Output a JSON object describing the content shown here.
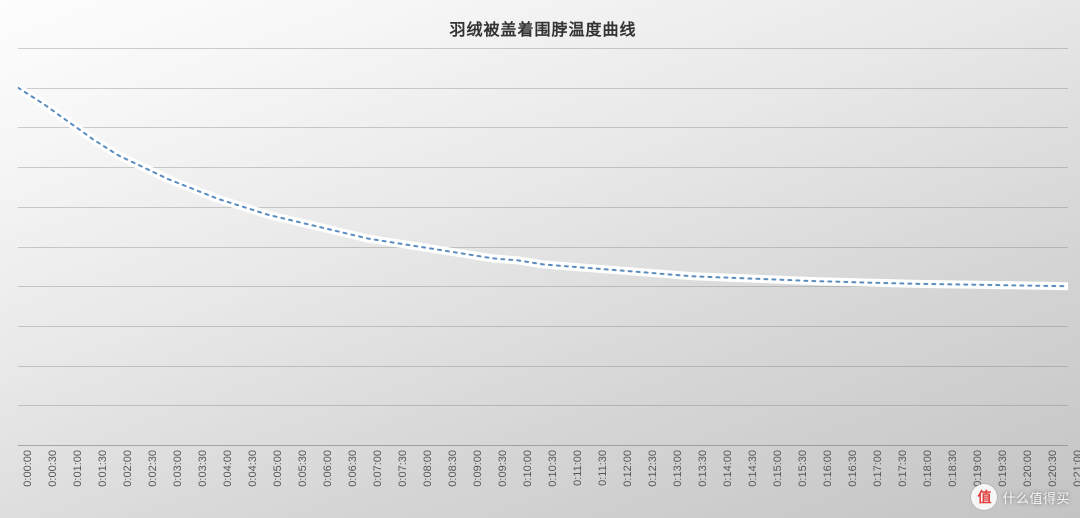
{
  "chart": {
    "type": "line",
    "title": "羽绒被盖着围脖温度曲线",
    "title_fontsize": 16,
    "title_color": "#333333",
    "background_gradient": [
      "#fdfdfd",
      "#f7f7f7",
      "#e9e9e9",
      "#d5d5d5",
      "#c4c4c4"
    ],
    "grid_color": "rgba(120,120,120,0.35)",
    "series": {
      "line_color": "#5b8cc0",
      "line_width": 2,
      "halo_color": "#ffffff",
      "halo_width": 8,
      "marker_color": "#5b8cc0",
      "marker_outline": "#ffffff",
      "marker_size": 3,
      "x_labels": [
        "0:00:00",
        "0:00:30",
        "0:01:00",
        "0:01:30",
        "0:02:00",
        "0:02:30",
        "0:03:00",
        "0:03:30",
        "0:04:00",
        "0:04:30",
        "0:05:00",
        "0:05:30",
        "0:06:00",
        "0:06:30",
        "0:07:00",
        "0:07:30",
        "0:08:00",
        "0:08:30",
        "0:09:00",
        "0:09:30",
        "0:10:00",
        "0:10:30",
        "0:11:00",
        "0:11:30",
        "0:12:00",
        "0:12:30",
        "0:13:00",
        "0:13:30",
        "0:14:00",
        "0:14:30",
        "0:15:00",
        "0:15:30",
        "0:16:00",
        "0:16:30",
        "0:17:00",
        "0:17:30",
        "0:18:00",
        "0:18:30",
        "0:19:00",
        "0:19:30",
        "0:20:00",
        "0:20:30",
        "0:21:00"
      ],
      "y_values": [
        48.0,
        47.2,
        46.3,
        45.4,
        44.6,
        44.0,
        43.4,
        42.9,
        42.4,
        42.0,
        41.6,
        41.3,
        41.0,
        40.7,
        40.4,
        40.2,
        40.0,
        39.8,
        39.6,
        39.4,
        39.3,
        39.1,
        39.0,
        38.9,
        38.8,
        38.7,
        38.6,
        38.5,
        38.45,
        38.4,
        38.35,
        38.3,
        38.25,
        38.22,
        38.18,
        38.15,
        38.12,
        38.1,
        38.08,
        38.06,
        38.04,
        38.02,
        38.0
      ]
    },
    "y_axis": {
      "min": 30,
      "max": 50,
      "gridlines": [
        30,
        32,
        34,
        36,
        38,
        40,
        42,
        44,
        46,
        48,
        50
      ],
      "label_fontsize": 0
    },
    "x_axis": {
      "rotation": -90,
      "label_fontsize": 11,
      "label_color": "#555555"
    }
  },
  "watermark": {
    "badge_text": "值",
    "text": "什么值得买"
  }
}
